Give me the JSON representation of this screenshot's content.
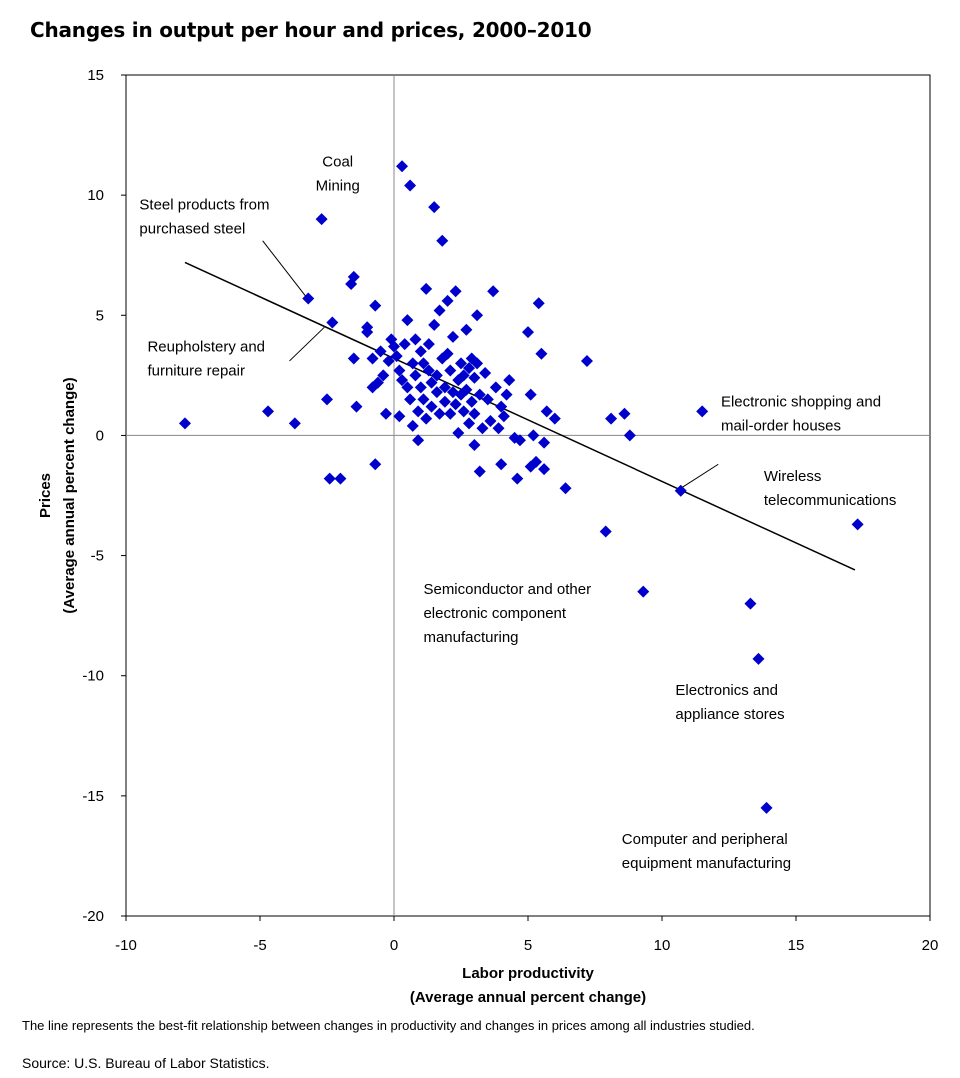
{
  "chart_data": {
    "type": "scatter",
    "title": "Changes in output per hour and prices, 2000–2010",
    "xlabel": [
      "Labor productivity",
      "(Average annual  percent change)"
    ],
    "ylabel": [
      "Prices",
      "(Average annual  percent change)"
    ],
    "xlim": [
      -10,
      20
    ],
    "ylim": [
      -20,
      15
    ],
    "xticks": [
      "-10",
      "-5",
      "0",
      "5",
      "10",
      "15",
      "20"
    ],
    "yticks": [
      "15",
      "10",
      "5",
      "0",
      "-5",
      "-10",
      "-15",
      "-20"
    ],
    "grid": false,
    "legend": "none",
    "marker_color": "#0000CC",
    "line_color": "#000000",
    "trendline": {
      "x": [
        -7.8,
        17.2
      ],
      "y": [
        7.2,
        -5.6
      ]
    },
    "points": [
      [
        -7.8,
        0.5
      ],
      [
        -4.7,
        1.0
      ],
      [
        -3.7,
        0.5
      ],
      [
        -3.2,
        5.7
      ],
      [
        -2.7,
        9.0
      ],
      [
        -2.5,
        1.5
      ],
      [
        -2.4,
        -1.8
      ],
      [
        -2.3,
        4.7
      ],
      [
        -2.0,
        -1.8
      ],
      [
        -1.6,
        6.3
      ],
      [
        -1.5,
        6.6
      ],
      [
        -1.5,
        3.2
      ],
      [
        -1.4,
        1.2
      ],
      [
        -1.0,
        4.3
      ],
      [
        -1.0,
        4.5
      ],
      [
        -0.8,
        3.2
      ],
      [
        -0.8,
        2.0
      ],
      [
        -0.7,
        -1.2
      ],
      [
        -0.7,
        5.4
      ],
      [
        -0.6,
        2.2
      ],
      [
        -0.5,
        3.5
      ],
      [
        -0.4,
        2.5
      ],
      [
        -0.3,
        0.9
      ],
      [
        -0.2,
        3.1
      ],
      [
        -0.1,
        4.0
      ],
      [
        0.0,
        3.7
      ],
      [
        0.1,
        3.3
      ],
      [
        0.2,
        2.7
      ],
      [
        0.2,
        0.8
      ],
      [
        0.3,
        11.2
      ],
      [
        0.3,
        2.3
      ],
      [
        0.4,
        3.8
      ],
      [
        0.5,
        4.8
      ],
      [
        0.5,
        2.0
      ],
      [
        0.6,
        10.4
      ],
      [
        0.6,
        1.5
      ],
      [
        0.7,
        0.4
      ],
      [
        0.7,
        3.0
      ],
      [
        0.8,
        2.5
      ],
      [
        0.8,
        4.0
      ],
      [
        0.9,
        1.0
      ],
      [
        0.9,
        -0.2
      ],
      [
        1.0,
        2.0
      ],
      [
        1.0,
        3.5
      ],
      [
        1.1,
        1.5
      ],
      [
        1.1,
        3.0
      ],
      [
        1.2,
        6.1
      ],
      [
        1.2,
        0.7
      ],
      [
        1.3,
        2.7
      ],
      [
        1.3,
        3.8
      ],
      [
        1.4,
        2.2
      ],
      [
        1.4,
        1.2
      ],
      [
        1.5,
        4.6
      ],
      [
        1.5,
        9.5
      ],
      [
        1.6,
        2.5
      ],
      [
        1.6,
        1.8
      ],
      [
        1.7,
        5.2
      ],
      [
        1.7,
        0.9
      ],
      [
        1.8,
        3.2
      ],
      [
        1.8,
        8.1
      ],
      [
        1.9,
        2.0
      ],
      [
        1.9,
        1.4
      ],
      [
        2.0,
        3.4
      ],
      [
        2.0,
        5.6
      ],
      [
        2.1,
        2.7
      ],
      [
        2.1,
        0.9
      ],
      [
        2.2,
        4.1
      ],
      [
        2.2,
        1.8
      ],
      [
        2.3,
        6.0
      ],
      [
        2.3,
        1.3
      ],
      [
        2.4,
        2.3
      ],
      [
        2.4,
        0.1
      ],
      [
        2.5,
        1.7
      ],
      [
        2.5,
        3.0
      ],
      [
        2.6,
        2.5
      ],
      [
        2.6,
        1.0
      ],
      [
        2.7,
        4.4
      ],
      [
        2.7,
        1.9
      ],
      [
        2.8,
        2.8
      ],
      [
        2.8,
        0.5
      ],
      [
        2.9,
        3.2
      ],
      [
        2.9,
        1.4
      ],
      [
        3.0,
        2.4
      ],
      [
        3.0,
        -0.4
      ],
      [
        3.0,
        0.9
      ],
      [
        3.1,
        3.0
      ],
      [
        3.1,
        5.0
      ],
      [
        3.2,
        1.7
      ],
      [
        3.2,
        -1.5
      ],
      [
        3.3,
        0.3
      ],
      [
        3.4,
        2.6
      ],
      [
        3.5,
        1.5
      ],
      [
        3.6,
        0.6
      ],
      [
        3.7,
        6.0
      ],
      [
        3.8,
        2.0
      ],
      [
        3.9,
        0.3
      ],
      [
        4.0,
        1.2
      ],
      [
        4.0,
        -1.2
      ],
      [
        4.1,
        0.8
      ],
      [
        4.2,
        1.7
      ],
      [
        4.3,
        2.3
      ],
      [
        4.5,
        -0.1
      ],
      [
        4.6,
        -1.8
      ],
      [
        4.7,
        -0.2
      ],
      [
        5.0,
        4.3
      ],
      [
        5.1,
        1.7
      ],
      [
        5.1,
        -1.3
      ],
      [
        5.2,
        0.0
      ],
      [
        5.3,
        -1.1
      ],
      [
        5.4,
        5.5
      ],
      [
        5.5,
        3.4
      ],
      [
        5.6,
        -0.3
      ],
      [
        5.6,
        -1.4
      ],
      [
        5.7,
        1.0
      ],
      [
        6.0,
        0.7
      ],
      [
        6.4,
        -2.2
      ],
      [
        7.2,
        3.1
      ],
      [
        7.9,
        -4.0
      ],
      [
        8.1,
        0.7
      ],
      [
        8.6,
        0.9
      ],
      [
        8.8,
        0.0
      ],
      [
        9.3,
        -6.5
      ],
      [
        10.7,
        -2.3
      ],
      [
        11.5,
        1.0
      ],
      [
        13.3,
        -7.0
      ],
      [
        13.6,
        -9.3
      ],
      [
        13.9,
        -15.5
      ],
      [
        17.3,
        -3.7
      ]
    ],
    "annotations": [
      {
        "lines": [
          "Coal",
          "Mining"
        ],
        "align": "middle",
        "x": -2.1,
        "y": 11.2
      },
      {
        "lines": [
          "Steel products from",
          "purchased steel"
        ],
        "align": "start",
        "x": -9.5,
        "y": 9.4
      },
      {
        "lines": [
          "Reupholstery and",
          "furniture repair"
        ],
        "align": "start",
        "x": -9.2,
        "y": 3.5
      },
      {
        "lines": [
          "Electronic shopping and",
          "mail-order houses"
        ],
        "align": "start",
        "x": 12.2,
        "y": 1.2
      },
      {
        "lines": [
          "Wireless",
          "telecommunications"
        ],
        "align": "start",
        "x": 13.8,
        "y": -1.9
      },
      {
        "lines": [
          "Semiconductor and other",
          "electronic component",
          "manufacturing"
        ],
        "align": "start",
        "x": 1.1,
        "y": -6.6
      },
      {
        "lines": [
          "Electronics and",
          "appliance stores"
        ],
        "align": "start",
        "x": 10.5,
        "y": -10.8
      },
      {
        "lines": [
          "Computer and peripheral",
          "equipment manufacturing"
        ],
        "align": "start",
        "x": 8.5,
        "y": -17.0
      }
    ],
    "leaders": [
      {
        "from": [
          -3.3,
          5.8
        ],
        "to": [
          -4.9,
          8.1
        ]
      },
      {
        "from": [
          -2.6,
          4.5
        ],
        "to": [
          -3.9,
          3.1
        ]
      },
      {
        "from": [
          10.7,
          -2.2
        ],
        "to": [
          12.1,
          -1.2
        ]
      }
    ]
  },
  "footnote": "The line represents the best-fit relationship between changes in productivity and changes in prices among all industries studied.",
  "source": "Source: U.S. Bureau of Labor Statistics."
}
